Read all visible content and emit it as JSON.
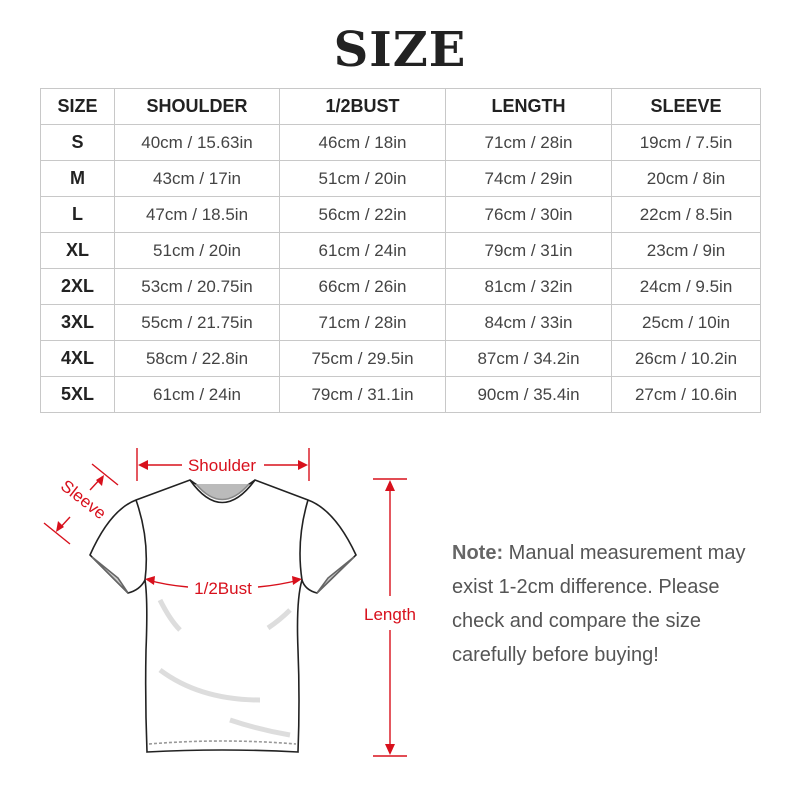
{
  "title": "SIZE",
  "table": {
    "headers": [
      "SIZE",
      "SHOULDER",
      "1/2BUST",
      "LENGTH",
      "SLEEVE"
    ],
    "rows": [
      [
        "S",
        "40cm / 15.63in",
        "46cm / 18in",
        "71cm / 28in",
        "19cm / 7.5in"
      ],
      [
        "M",
        "43cm / 17in",
        "51cm / 20in",
        "74cm / 29in",
        "20cm / 8in"
      ],
      [
        "L",
        "47cm / 18.5in",
        "56cm / 22in",
        "76cm / 30in",
        "22cm / 8.5in"
      ],
      [
        "XL",
        "51cm / 20in",
        "61cm / 24in",
        "79cm / 31in",
        "23cm / 9in"
      ],
      [
        "2XL",
        "53cm / 20.75in",
        "66cm / 26in",
        "81cm / 32in",
        "24cm / 9.5in"
      ],
      [
        "3XL",
        "55cm / 21.75in",
        "71cm / 28in",
        "84cm / 33in",
        "25cm / 10in"
      ],
      [
        "4XL",
        "58cm / 22.8in",
        "75cm / 29.5in",
        "87cm / 34.2in",
        "26cm / 10.2in"
      ],
      [
        "5XL",
        "61cm / 24in",
        "79cm / 31.1in",
        "90cm / 35.4in",
        "27cm / 10.6in"
      ]
    ]
  },
  "diagram": {
    "labels": {
      "shoulder": "Shoulder",
      "sleeve": "Sleeve",
      "bust": "1/2Bust",
      "length": "Length"
    },
    "accent_color": "#d8101c"
  },
  "note": {
    "label": "Note:",
    "text": "Manual measurement may exist 1-2cm difference. Please check and compare the size carefully before buying!"
  }
}
